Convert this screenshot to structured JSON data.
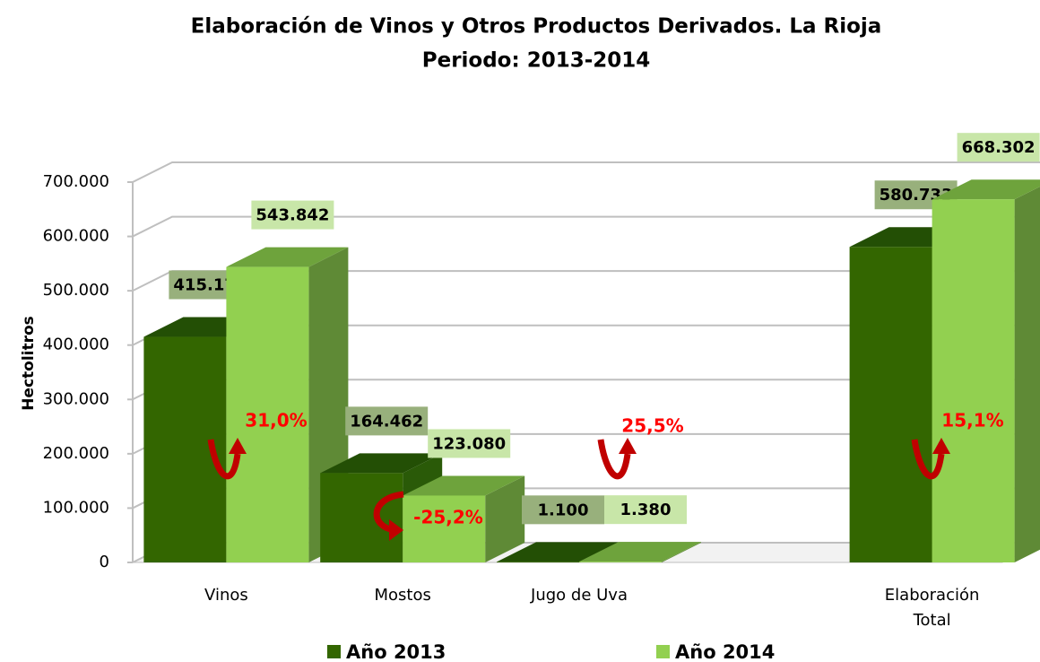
{
  "chart_data": {
    "type": "bar3d",
    "title": "Elaboración de Vinos y Otros Productos Derivados. La Rioja",
    "subtitle": "Periodo: 2013-2014",
    "y_label": "Hectolitros",
    "categories": [
      "Vinos",
      "Mostos",
      "Jugo de Uva",
      null,
      "Elaboración Total"
    ],
    "series": [
      {
        "name": "Año 2013",
        "color": "#336600",
        "values": [
          415171,
          164462,
          1100,
          null,
          580733
        ],
        "value_labels": [
          "415.171",
          "164.462",
          "1.100",
          null,
          "580.733"
        ]
      },
      {
        "name": "Año 2014",
        "color": "#92d050",
        "values": [
          543842,
          123080,
          1380,
          null,
          668302
        ],
        "value_labels": [
          "543.842",
          "123.080",
          "1.380",
          null,
          "668.302"
        ]
      }
    ],
    "annotations": [
      "31,0%",
      "-25,2%",
      "25,5%",
      "15,1%"
    ],
    "ylim": [
      0,
      700000
    ],
    "yticks": [
      {
        "value": 0,
        "label": "0"
      },
      {
        "value": 100000,
        "label": "100.000"
      },
      {
        "value": 200000,
        "label": "200.000"
      },
      {
        "value": 300000,
        "label": "300.000"
      },
      {
        "value": 400000,
        "label": "400.000"
      },
      {
        "value": 500000,
        "label": "500.000"
      },
      {
        "value": 600000,
        "label": "600.000"
      },
      {
        "value": 700000,
        "label": "700.000"
      }
    ],
    "grid": true,
    "legend": "bottom"
  }
}
